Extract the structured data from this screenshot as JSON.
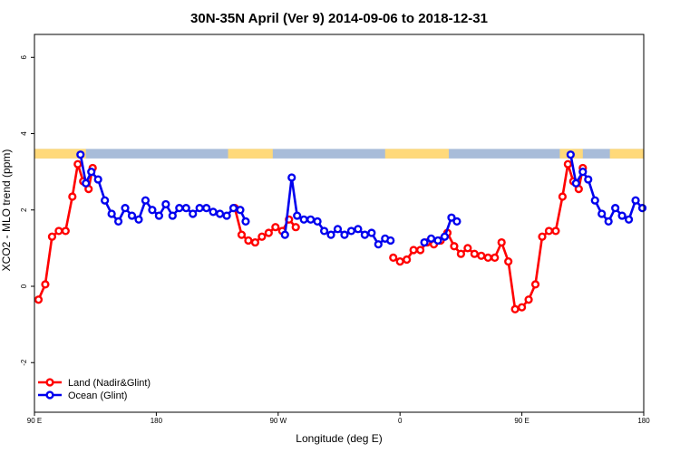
{
  "chart_data": {
    "type": "line",
    "title": "30N-35N April (Ver 9)   2014-09-06 to 2018-12-31",
    "xlabel": "Longitude (deg E)",
    "ylabel": "XCO2 - MLO trend (ppm)",
    "xlim": [
      90,
      540
    ],
    "ylim": [
      -3.3,
      6.6
    ],
    "grid": false,
    "legend_position": "bottom-left",
    "x_ticks": [
      {
        "value": 90,
        "label": "90 E"
      },
      {
        "value": 180,
        "label": "180"
      },
      {
        "value": 270,
        "label": "90 W"
      },
      {
        "value": 360,
        "label": "0"
      },
      {
        "value": 450,
        "label": "90 E"
      },
      {
        "value": 540,
        "label": "180"
      }
    ],
    "y_ticks": [
      {
        "value": -2,
        "label": "-2"
      },
      {
        "value": 0,
        "label": "0"
      },
      {
        "value": 2,
        "label": "2"
      },
      {
        "value": 4,
        "label": "4"
      },
      {
        "value": 6,
        "label": "6"
      }
    ],
    "band": {
      "y_from": 3.35,
      "y_to": 3.6,
      "land_color": "#FFD97A",
      "ocean_color": "#A8BCD9",
      "land_ranges": [
        [
          90,
          128
        ],
        [
          233,
          266
        ],
        [
          349,
          396
        ],
        [
          478,
          495
        ],
        [
          515,
          540
        ]
      ]
    },
    "series": [
      {
        "name": "Land (Nadir&Glint)",
        "color": "#FF0000",
        "segments": [
          [
            [
              93,
              -0.35
            ],
            [
              98,
              0.05
            ],
            [
              103,
              1.3
            ],
            [
              108,
              1.45
            ],
            [
              113,
              1.45
            ],
            [
              118,
              2.35
            ],
            [
              122,
              3.2
            ],
            [
              126,
              2.75
            ],
            [
              130,
              2.55
            ],
            [
              133,
              3.1
            ]
          ],
          [
            [
              238,
              2.05
            ],
            [
              243,
              1.35
            ],
            [
              248,
              1.2
            ],
            [
              253,
              1.15
            ],
            [
              258,
              1.3
            ],
            [
              263,
              1.4
            ],
            [
              268,
              1.55
            ],
            [
              273,
              1.45
            ],
            [
              278,
              1.75
            ],
            [
              283,
              1.55
            ]
          ],
          [
            [
              355,
              0.75
            ],
            [
              360,
              0.65
            ],
            [
              365,
              0.7
            ],
            [
              370,
              0.95
            ],
            [
              375,
              0.95
            ],
            [
              380,
              1.15
            ],
            [
              385,
              1.1
            ],
            [
              390,
              1.2
            ],
            [
              395,
              1.4
            ],
            [
              400,
              1.05
            ],
            [
              405,
              0.85
            ],
            [
              410,
              1.0
            ],
            [
              415,
              0.85
            ],
            [
              420,
              0.8
            ],
            [
              425,
              0.75
            ],
            [
              430,
              0.75
            ],
            [
              435,
              1.15
            ],
            [
              440,
              0.65
            ],
            [
              445,
              -0.6
            ],
            [
              450,
              -0.55
            ],
            [
              455,
              -0.35
            ],
            [
              460,
              0.05
            ],
            [
              465,
              1.3
            ],
            [
              470,
              1.45
            ],
            [
              475,
              1.45
            ],
            [
              480,
              2.35
            ],
            [
              484,
              3.2
            ],
            [
              488,
              2.75
            ],
            [
              492,
              2.55
            ],
            [
              495,
              3.1
            ]
          ]
        ]
      },
      {
        "name": "Ocean (Glint)",
        "color": "#0000EE",
        "segments": [
          [
            [
              124,
              3.45
            ],
            [
              128,
              2.7
            ],
            [
              132,
              3.0
            ],
            [
              137,
              2.8
            ],
            [
              142,
              2.25
            ],
            [
              147,
              1.9
            ],
            [
              152,
              1.7
            ],
            [
              157,
              2.05
            ],
            [
              162,
              1.85
            ],
            [
              167,
              1.75
            ],
            [
              172,
              2.25
            ],
            [
              177,
              2.0
            ],
            [
              182,
              1.85
            ],
            [
              187,
              2.15
            ],
            [
              192,
              1.85
            ],
            [
              197,
              2.05
            ],
            [
              202,
              2.05
            ],
            [
              207,
              1.9
            ],
            [
              212,
              2.05
            ],
            [
              217,
              2.05
            ],
            [
              222,
              1.95
            ],
            [
              227,
              1.9
            ],
            [
              232,
              1.85
            ],
            [
              237,
              2.05
            ],
            [
              242,
              2.0
            ],
            [
              246,
              1.7
            ]
          ],
          [
            [
              275,
              1.35
            ],
            [
              280,
              2.85
            ],
            [
              284,
              1.85
            ],
            [
              289,
              1.75
            ],
            [
              294,
              1.75
            ],
            [
              299,
              1.7
            ],
            [
              304,
              1.45
            ],
            [
              309,
              1.35
            ],
            [
              314,
              1.5
            ],
            [
              319,
              1.35
            ],
            [
              324,
              1.45
            ],
            [
              329,
              1.5
            ],
            [
              334,
              1.35
            ],
            [
              339,
              1.4
            ],
            [
              344,
              1.1
            ],
            [
              349,
              1.25
            ],
            [
              353,
              1.2
            ]
          ],
          [
            [
              378,
              1.15
            ],
            [
              383,
              1.25
            ],
            [
              388,
              1.2
            ],
            [
              393,
              1.3
            ],
            [
              398,
              1.8
            ],
            [
              402,
              1.7
            ]
          ],
          [
            [
              486,
              3.45
            ],
            [
              490,
              2.7
            ],
            [
              495,
              3.0
            ],
            [
              499,
              2.8
            ],
            [
              504,
              2.25
            ],
            [
              509,
              1.9
            ],
            [
              514,
              1.7
            ],
            [
              519,
              2.05
            ],
            [
              524,
              1.85
            ],
            [
              529,
              1.75
            ],
            [
              534,
              2.25
            ],
            [
              539,
              2.05
            ]
          ]
        ]
      }
    ]
  }
}
